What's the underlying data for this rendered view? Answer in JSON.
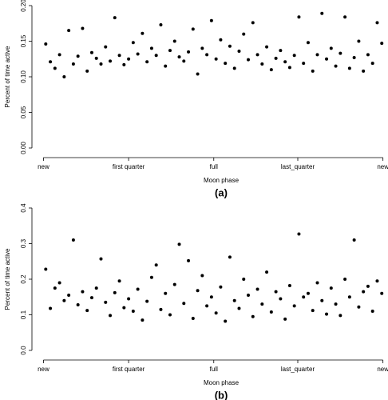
{
  "chart_data": [
    {
      "type": "scatter",
      "caption": "(a)",
      "x_label": "Moon phase",
      "y_label": "Percent of time active",
      "color": "#000000",
      "xlim": [
        -1,
        29.8
      ],
      "ylim": [
        0,
        0.2
      ],
      "xticks": [
        {
          "value": 0,
          "label": "new"
        },
        {
          "value": 7.4,
          "label": "first quarter"
        },
        {
          "value": 14.8,
          "label": "full"
        },
        {
          "value": 22.1,
          "label": "last_quarter"
        },
        {
          "value": 29.5,
          "label": "new"
        }
      ],
      "yticks": [
        {
          "value": 0,
          "label": "0.00"
        },
        0.05,
        {
          "value": 0.1,
          "label": "0.10"
        },
        0.15,
        {
          "value": 0.2,
          "label": "0.20"
        }
      ],
      "x": [
        0.2,
        0.6,
        1,
        1.4,
        1.8,
        2.2,
        2.6,
        3,
        3.4,
        3.8,
        4.2,
        4.6,
        5,
        5.4,
        5.8,
        6.2,
        6.6,
        7,
        7.4,
        7.8,
        8.2,
        8.6,
        9,
        9.4,
        9.8,
        10.2,
        10.6,
        11,
        11.4,
        11.8,
        12.2,
        12.6,
        13,
        13.4,
        13.8,
        14.2,
        14.6,
        15,
        15.4,
        15.8,
        16.2,
        16.6,
        17,
        17.4,
        17.8,
        18.2,
        18.6,
        19,
        19.4,
        19.8,
        20.2,
        20.6,
        21,
        21.4,
        21.8,
        22.2,
        22.6,
        23,
        23.4,
        23.8,
        24.2,
        24.6,
        25,
        25.4,
        25.8,
        26.2,
        26.6,
        27,
        27.4,
        27.8,
        28.2,
        28.6,
        29,
        29.4
      ],
      "values": [
        0.146,
        0.121,
        0.112,
        0.131,
        0.1,
        0.165,
        0.118,
        0.129,
        0.168,
        0.108,
        0.134,
        0.126,
        0.118,
        0.142,
        0.122,
        0.183,
        0.13,
        0.117,
        0.125,
        0.148,
        0.132,
        0.161,
        0.121,
        0.14,
        0.13,
        0.173,
        0.115,
        0.137,
        0.15,
        0.128,
        0.122,
        0.135,
        0.167,
        0.104,
        0.14,
        0.131,
        0.179,
        0.125,
        0.152,
        0.119,
        0.143,
        0.112,
        0.136,
        0.16,
        0.124,
        0.176,
        0.131,
        0.118,
        0.142,
        0.11,
        0.126,
        0.137,
        0.121,
        0.113,
        0.13,
        0.184,
        0.119,
        0.148,
        0.108,
        0.131,
        0.189,
        0.125,
        0.14,
        0.115,
        0.133,
        0.184,
        0.112,
        0.127,
        0.15,
        0.108,
        0.131,
        0.119,
        0.176,
        0.147
      ]
    },
    {
      "type": "scatter",
      "caption": "(b)",
      "x_label": "Moon phase",
      "y_label": "Percent of time active",
      "color": "#000000",
      "xlim": [
        -1,
        29.8
      ],
      "ylim": [
        0,
        0.4
      ],
      "xticks": [
        {
          "value": 0,
          "label": "new"
        },
        {
          "value": 7.4,
          "label": "first quarter"
        },
        {
          "value": 14.8,
          "label": "full"
        },
        {
          "value": 22.1,
          "label": "last_quarter"
        },
        {
          "value": 29.5,
          "label": "new"
        }
      ],
      "yticks": [
        {
          "value": 0,
          "label": "0.0"
        },
        0.1,
        0.2,
        0.3,
        0.4
      ],
      "x": [
        0.2,
        0.6,
        1,
        1.4,
        1.8,
        2.2,
        2.6,
        3,
        3.4,
        3.8,
        4.2,
        4.6,
        5,
        5.4,
        5.8,
        6.2,
        6.6,
        7,
        7.4,
        7.8,
        8.2,
        8.6,
        9,
        9.4,
        9.8,
        10.2,
        10.6,
        11,
        11.4,
        11.8,
        12.2,
        12.6,
        13,
        13.4,
        13.8,
        14.2,
        14.6,
        15,
        15.4,
        15.8,
        16.2,
        16.6,
        17,
        17.4,
        17.8,
        18.2,
        18.6,
        19,
        19.4,
        19.8,
        20.2,
        20.6,
        21,
        21.4,
        21.8,
        22.2,
        22.6,
        23,
        23.4,
        23.8,
        24.2,
        24.6,
        25,
        25.4,
        25.8,
        26.2,
        26.6,
        27,
        27.4,
        27.8,
        28.2,
        28.6,
        29,
        29.4
      ],
      "values": [
        0.228,
        0.118,
        0.175,
        0.19,
        0.14,
        0.155,
        0.31,
        0.128,
        0.165,
        0.112,
        0.148,
        0.175,
        0.257,
        0.135,
        0.098,
        0.162,
        0.195,
        0.12,
        0.145,
        0.11,
        0.172,
        0.085,
        0.138,
        0.205,
        0.24,
        0.115,
        0.16,
        0.1,
        0.185,
        0.298,
        0.132,
        0.252,
        0.09,
        0.168,
        0.21,
        0.125,
        0.15,
        0.105,
        0.178,
        0.082,
        0.262,
        0.14,
        0.118,
        0.2,
        0.155,
        0.095,
        0.172,
        0.13,
        0.22,
        0.108,
        0.165,
        0.145,
        0.088,
        0.182,
        0.125,
        0.327,
        0.15,
        0.16,
        0.112,
        0.19,
        0.14,
        0.102,
        0.175,
        0.13,
        0.098,
        0.2,
        0.15,
        0.31,
        0.122,
        0.165,
        0.18,
        0.11,
        0.195,
        0.16
      ]
    }
  ]
}
